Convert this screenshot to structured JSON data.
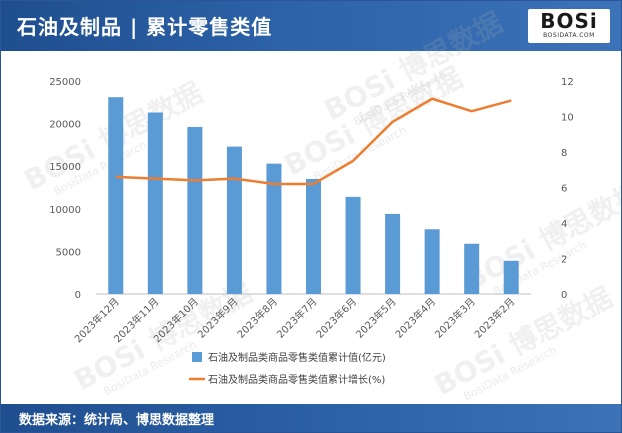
{
  "header": {
    "title": "石油及制品 | 累计零售类值",
    "logo_main": "BOSi",
    "logo_sub": "BOSIDATA.COM"
  },
  "watermark": {
    "brand": "BOSi",
    "cn": "博思数据",
    "en": "BosiData Research"
  },
  "footer": {
    "source": "数据来源：统计局、博思数据整理"
  },
  "colors": {
    "bar": "#5b9bd5",
    "line": "#ed7d31",
    "header": "#2c62a8"
  },
  "chart_data": {
    "type": "bar",
    "title": "",
    "categories": [
      "2023年12月",
      "2023年11月",
      "2023年10月",
      "2023年9月",
      "2023年8月",
      "2023年7月",
      "2023年6月",
      "2023年5月",
      "2023年4月",
      "2023年3月",
      "2023年2月"
    ],
    "series": [
      {
        "name": "石油及制品类商品零售类值累计值(亿元)",
        "type": "bar",
        "axis": "left",
        "values": [
          23100,
          21300,
          19600,
          17300,
          15300,
          13500,
          11400,
          9400,
          7600,
          5900,
          3900
        ]
      },
      {
        "name": "石油及制品类商品零售类值累计增长(%)",
        "type": "line",
        "axis": "right",
        "values": [
          6.6,
          6.5,
          6.4,
          6.5,
          6.2,
          6.2,
          7.5,
          9.7,
          11.0,
          10.3,
          10.9
        ]
      }
    ],
    "y_left": {
      "min": 0,
      "max": 25000,
      "ticks": [
        "0",
        "5000",
        "10000",
        "15000",
        "20000",
        "25000"
      ]
    },
    "y_right": {
      "min": 0,
      "max": 12,
      "ticks": [
        "0",
        "2",
        "4",
        "6",
        "8",
        "10",
        "12"
      ]
    },
    "grid": false,
    "legend": "bottom"
  }
}
